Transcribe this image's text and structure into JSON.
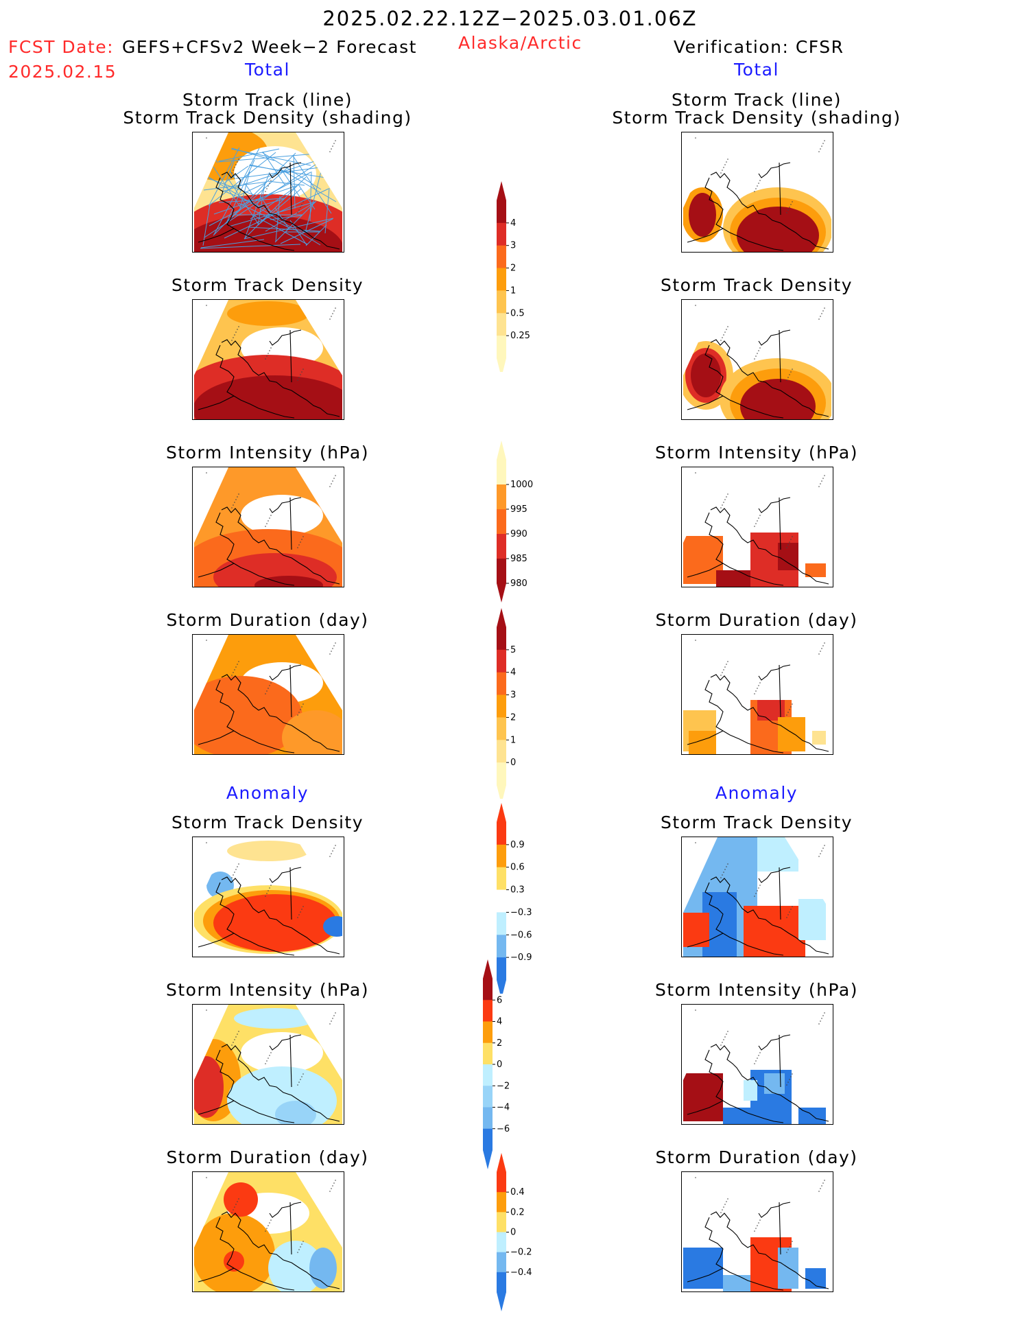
{
  "title": "2025.02.22.12Z−2025.03.01.06Z",
  "region": "Alaska/Arctic",
  "fcst_label": "FCST Date:",
  "fcst_model": "GEFS+CFSv2 Week−2 Forecast",
  "fcst_date": "2025.02.15",
  "verification": "Verification: CFSR",
  "sections": {
    "total": "Total",
    "anomaly": "Anomaly"
  },
  "panel_titles": {
    "track_line": "Storm Track (line)",
    "track_shading": "Storm Track Density (shading)",
    "density": "Storm Track Density",
    "intensity": "Storm Intensity (hPa)",
    "duration": "Storm Duration (day)"
  },
  "colorbars": {
    "total_density": {
      "labels": [
        "4",
        "3",
        "2",
        "1",
        "0.5",
        "0.25"
      ],
      "colors": [
        "#a50f15",
        "#de2d26",
        "#fb6a1c",
        "#fd9d0c",
        "#fec44f",
        "#fee391",
        "#fff7bc"
      ]
    },
    "total_intensity": {
      "labels": [
        "1000",
        "995",
        "990",
        "985",
        "980"
      ],
      "colors": [
        "#fff7bc",
        "#fe9929",
        "#fb6a1c",
        "#de2d26",
        "#a50f15"
      ]
    },
    "total_duration": {
      "labels": [
        "5",
        "4",
        "3",
        "2",
        "1",
        "0"
      ],
      "colors": [
        "#a50f15",
        "#de2d26",
        "#fb6a1c",
        "#fd9d0c",
        "#fec44f",
        "#fee391",
        "#fff7bc"
      ]
    },
    "anom_density": {
      "labels": [
        "0.9",
        "0.6",
        "0.3",
        "−0.3",
        "−0.6",
        "−0.9"
      ],
      "colors": [
        "#fb3a12",
        "#fd9d0c",
        "#fee066",
        "#ffffff",
        "#bfefff",
        "#74b8f0",
        "#2a7ae2"
      ]
    },
    "anom_intensity": {
      "labels": [
        "6",
        "4",
        "2",
        "0",
        "−2",
        "−4",
        "−6"
      ],
      "colors": [
        "#a50f15",
        "#fb3a12",
        "#fd9d0c",
        "#fee066",
        "#bfefff",
        "#98d4f8",
        "#74b8f0",
        "#2a7ae2"
      ]
    },
    "anom_duration": {
      "labels": [
        "0.4",
        "0.2",
        "0",
        "−0.2",
        "−0.4"
      ],
      "colors": [
        "#fb3a12",
        "#fd9d0c",
        "#fee066",
        "#bfefff",
        "#74b8f0",
        "#2a7ae2"
      ]
    }
  },
  "colors": {
    "title_red": "#ff2a2a",
    "section_blue": "#1a1aff",
    "track_line": "#4aa0e0"
  }
}
